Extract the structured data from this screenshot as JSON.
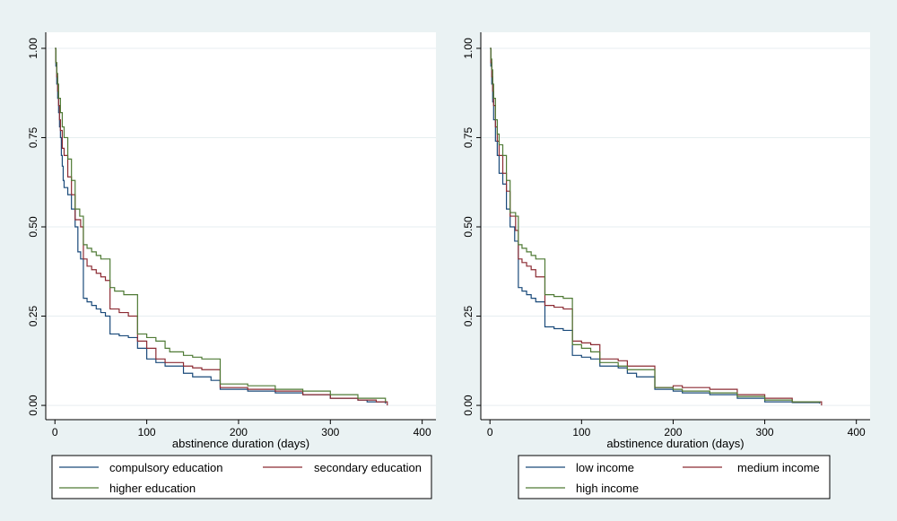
{
  "colors": {
    "background": "#eaf2f3",
    "plot_bg": "#ffffff",
    "grid": "#e6eef0",
    "series": [
      "#1a4a7a",
      "#8c2b33",
      "#4f7a35"
    ]
  },
  "chart_data": [
    {
      "type": "line",
      "step": true,
      "title": "",
      "xlabel": "abstinence duration (days)",
      "ylabel": "",
      "xlim": [
        -10,
        415
      ],
      "ylim": [
        -0.04,
        1.045
      ],
      "xticks": [
        0,
        100,
        200,
        300,
        400
      ],
      "yticks": [
        0,
        0.25,
        0.5,
        0.75,
        1.0
      ],
      "xtick_labels": [
        "0",
        "100",
        "200",
        "300",
        "400"
      ],
      "ytick_labels": [
        "0.00",
        "0.25",
        "0.50",
        "0.75",
        "1.00"
      ],
      "grid": true,
      "legend_position": "bottom",
      "series": [
        {
          "name": "compulsory education",
          "x": [
            0,
            1,
            2,
            3,
            4,
            5,
            6,
            7,
            8,
            9,
            10,
            14,
            18,
            22,
            25,
            28,
            31,
            35,
            40,
            45,
            50,
            55,
            60,
            70,
            80,
            90,
            100,
            110,
            120,
            140,
            150,
            170,
            180,
            210,
            240,
            270,
            300,
            330,
            340,
            360
          ],
          "y": [
            1.0,
            0.95,
            0.9,
            0.86,
            0.82,
            0.78,
            0.75,
            0.7,
            0.67,
            0.63,
            0.61,
            0.59,
            0.55,
            0.5,
            0.43,
            0.41,
            0.3,
            0.29,
            0.28,
            0.27,
            0.26,
            0.25,
            0.2,
            0.195,
            0.19,
            0.16,
            0.13,
            0.12,
            0.11,
            0.09,
            0.08,
            0.07,
            0.045,
            0.04,
            0.035,
            0.03,
            0.02,
            0.015,
            0.01,
            0.005
          ]
        },
        {
          "name": "secondary education",
          "x": [
            0,
            1,
            2,
            3,
            4,
            5,
            6,
            8,
            10,
            14,
            18,
            22,
            28,
            31,
            35,
            40,
            45,
            50,
            55,
            60,
            70,
            80,
            90,
            100,
            110,
            120,
            140,
            150,
            160,
            180,
            210,
            240,
            270,
            300,
            330,
            350,
            362
          ],
          "y": [
            1.0,
            0.96,
            0.92,
            0.88,
            0.84,
            0.8,
            0.77,
            0.72,
            0.7,
            0.64,
            0.59,
            0.52,
            0.5,
            0.41,
            0.39,
            0.38,
            0.37,
            0.36,
            0.35,
            0.27,
            0.26,
            0.25,
            0.18,
            0.16,
            0.13,
            0.12,
            0.11,
            0.105,
            0.1,
            0.05,
            0.045,
            0.04,
            0.03,
            0.02,
            0.015,
            0.01,
            0.0
          ]
        },
        {
          "name": "higher education",
          "x": [
            0,
            1,
            2,
            3,
            4,
            6,
            8,
            10,
            14,
            18,
            22,
            27,
            31,
            35,
            40,
            45,
            50,
            60,
            65,
            75,
            90,
            100,
            110,
            120,
            125,
            140,
            150,
            160,
            180,
            210,
            240,
            270,
            300,
            330,
            360
          ],
          "y": [
            1.0,
            0.96,
            0.93,
            0.9,
            0.86,
            0.82,
            0.78,
            0.75,
            0.69,
            0.63,
            0.55,
            0.53,
            0.45,
            0.44,
            0.43,
            0.42,
            0.41,
            0.33,
            0.32,
            0.31,
            0.2,
            0.19,
            0.18,
            0.16,
            0.15,
            0.14,
            0.135,
            0.13,
            0.06,
            0.055,
            0.045,
            0.04,
            0.03,
            0.02,
            0.01
          ]
        }
      ]
    },
    {
      "type": "line",
      "step": true,
      "title": "",
      "xlabel": "abstinence duration (days)",
      "ylabel": "",
      "xlim": [
        -10,
        415
      ],
      "ylim": [
        -0.04,
        1.045
      ],
      "xticks": [
        0,
        100,
        200,
        300,
        400
      ],
      "yticks": [
        0,
        0.25,
        0.5,
        0.75,
        1.0
      ],
      "xtick_labels": [
        "0",
        "100",
        "200",
        "300",
        "400"
      ],
      "ytick_labels": [
        "0.00",
        "0.25",
        "0.50",
        "0.75",
        "1.00"
      ],
      "grid": true,
      "legend_position": "bottom",
      "series": [
        {
          "name": "low income",
          "x": [
            0,
            1,
            2,
            3,
            4,
            6,
            8,
            10,
            14,
            18,
            22,
            27,
            31,
            35,
            40,
            45,
            50,
            60,
            70,
            80,
            90,
            100,
            110,
            120,
            140,
            150,
            160,
            180,
            200,
            210,
            240,
            270,
            300,
            330,
            360
          ],
          "y": [
            1.0,
            0.95,
            0.9,
            0.85,
            0.8,
            0.74,
            0.7,
            0.65,
            0.62,
            0.55,
            0.5,
            0.46,
            0.33,
            0.32,
            0.31,
            0.3,
            0.29,
            0.22,
            0.215,
            0.21,
            0.14,
            0.135,
            0.13,
            0.11,
            0.105,
            0.09,
            0.08,
            0.045,
            0.04,
            0.035,
            0.03,
            0.02,
            0.01,
            0.008,
            0.005
          ]
        },
        {
          "name": "medium income",
          "x": [
            0,
            1,
            2,
            3,
            4,
            6,
            8,
            10,
            14,
            18,
            22,
            28,
            31,
            35,
            40,
            45,
            50,
            60,
            70,
            80,
            90,
            100,
            110,
            120,
            140,
            150,
            180,
            200,
            210,
            240,
            270,
            300,
            330,
            362
          ],
          "y": [
            1.0,
            0.96,
            0.92,
            0.88,
            0.84,
            0.78,
            0.74,
            0.7,
            0.65,
            0.6,
            0.53,
            0.49,
            0.41,
            0.4,
            0.39,
            0.38,
            0.36,
            0.28,
            0.275,
            0.27,
            0.18,
            0.175,
            0.17,
            0.13,
            0.125,
            0.11,
            0.05,
            0.055,
            0.05,
            0.045,
            0.03,
            0.02,
            0.01,
            0.0
          ]
        },
        {
          "name": "high income",
          "x": [
            0,
            1,
            2,
            3,
            4,
            6,
            8,
            10,
            14,
            18,
            22,
            28,
            31,
            35,
            40,
            45,
            50,
            60,
            70,
            80,
            90,
            100,
            110,
            120,
            140,
            150,
            180,
            200,
            210,
            240,
            270,
            300,
            330,
            360
          ],
          "y": [
            1.0,
            0.97,
            0.94,
            0.9,
            0.86,
            0.8,
            0.76,
            0.73,
            0.7,
            0.63,
            0.54,
            0.53,
            0.45,
            0.44,
            0.43,
            0.42,
            0.41,
            0.31,
            0.305,
            0.3,
            0.17,
            0.16,
            0.15,
            0.12,
            0.11,
            0.1,
            0.05,
            0.045,
            0.04,
            0.035,
            0.025,
            0.015,
            0.01,
            0.008
          ]
        }
      ]
    }
  ]
}
